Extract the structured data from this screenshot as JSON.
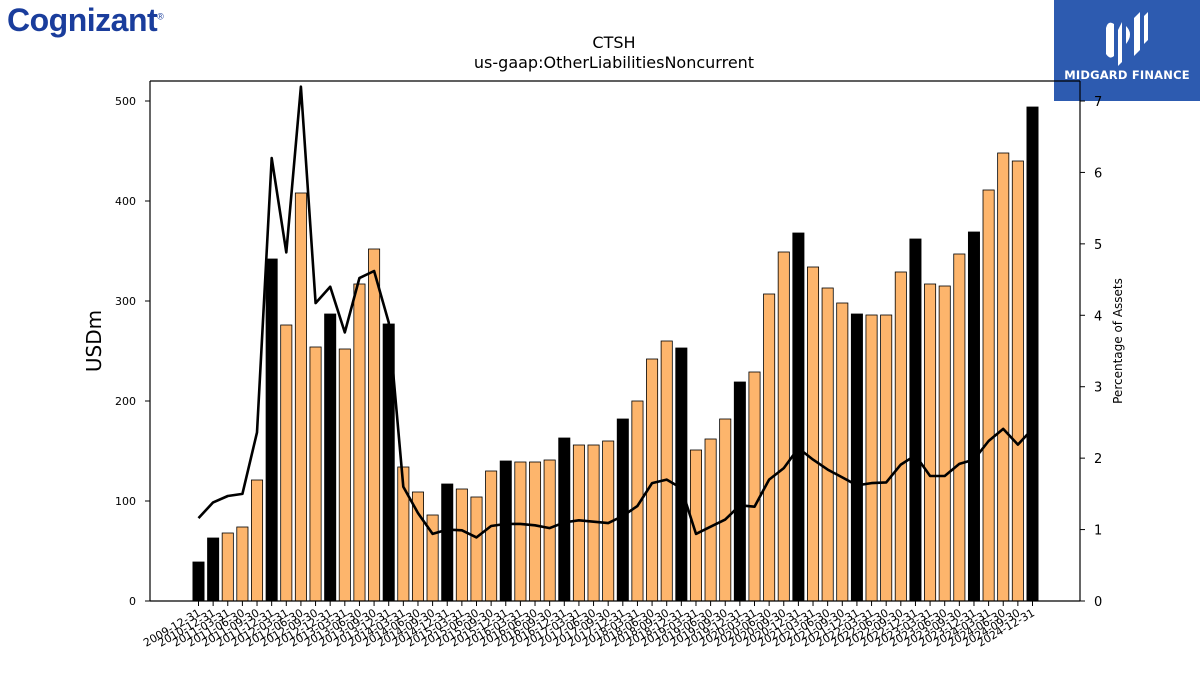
{
  "brand": {
    "left_logo": "Cognizant",
    "right_logo": "MIDGARD FINANCE"
  },
  "colors": {
    "bar_normal": "#fdb56c",
    "bar_year_end": "#000000",
    "line": "#000000"
  },
  "chart_data": {
    "type": "bar",
    "title": "CTSH",
    "subtitle": "us-gaap:OtherLiabilitiesNoncurrent",
    "ylabel": "USDm",
    "y2label": "Percentage of Assets",
    "ylim": [
      0,
      520
    ],
    "y2lim": [
      0,
      7.28
    ],
    "yticks": [
      0,
      100,
      200,
      300,
      400,
      500
    ],
    "y2ticks": [
      0,
      1,
      2,
      3,
      4,
      5,
      6,
      7
    ],
    "categories": [
      "2009-12-31",
      "2010-12-31",
      "2011-03-31",
      "2011-06-30",
      "2011-09-30",
      "2011-12-31",
      "2012-03-31",
      "2012-06-30",
      "2012-09-30",
      "2012-12-31",
      "2013-03-31",
      "2013-06-30",
      "2013-09-30",
      "2013-12-31",
      "2014-03-31",
      "2014-06-30",
      "2014-09-30",
      "2014-12-31",
      "2015-03-31",
      "2015-06-30",
      "2015-09-30",
      "2015-12-31",
      "2016-03-31",
      "2016-06-30",
      "2016-09-30",
      "2016-12-31",
      "2017-03-31",
      "2017-06-30",
      "2017-09-30",
      "2017-12-31",
      "2018-03-31",
      "2018-06-30",
      "2018-09-30",
      "2018-12-31",
      "2019-03-31",
      "2019-06-30",
      "2019-09-30",
      "2019-12-31",
      "2020-03-31",
      "2020-06-30",
      "2020-09-30",
      "2020-12-31",
      "2021-03-31",
      "2021-06-30",
      "2021-09-30",
      "2021-12-31",
      "2022-03-31",
      "2022-06-30",
      "2022-09-30",
      "2022-12-31",
      "2023-03-31",
      "2023-06-30",
      "2023-09-30",
      "2023-12-31",
      "2024-03-31",
      "2024-06-30",
      "2024-09-30",
      "2024-12-31"
    ],
    "series": [
      {
        "type": "bar",
        "values": [
          39,
          63,
          68,
          74,
          121,
          342,
          276,
          408,
          254,
          287,
          252,
          317,
          352,
          277,
          134,
          109,
          86,
          117,
          112,
          104,
          130,
          140,
          139,
          139,
          141,
          163,
          156,
          156,
          160,
          182,
          200,
          242,
          260,
          253,
          151,
          162,
          182,
          219,
          229,
          307,
          349,
          368,
          334,
          313,
          298,
          287,
          286,
          286,
          329,
          362,
          317,
          315,
          347,
          369,
          411,
          448,
          440,
          494
        ]
      },
      {
        "type": "line",
        "axis": "right",
        "values": [
          1.16,
          1.38,
          1.47,
          1.5,
          2.36,
          6.2,
          4.88,
          7.2,
          4.17,
          4.4,
          3.76,
          4.52,
          4.62,
          3.9,
          1.6,
          1.23,
          0.94,
          1,
          0.99,
          0.89,
          1.05,
          1.08,
          1.08,
          1.06,
          1.02,
          1.1,
          1.13,
          1.11,
          1.09,
          1.19,
          1.33,
          1.65,
          1.7,
          1.58,
          0.94,
          1.04,
          1.14,
          1.34,
          1.32,
          1.7,
          1.86,
          2.14,
          1.98,
          1.84,
          1.73,
          1.62,
          1.65,
          1.66,
          1.91,
          2.04,
          1.75,
          1.75,
          1.92,
          1.98,
          2.24,
          2.41,
          2.19,
          2.41
        ]
      }
    ],
    "year_end_highlight": true
  }
}
